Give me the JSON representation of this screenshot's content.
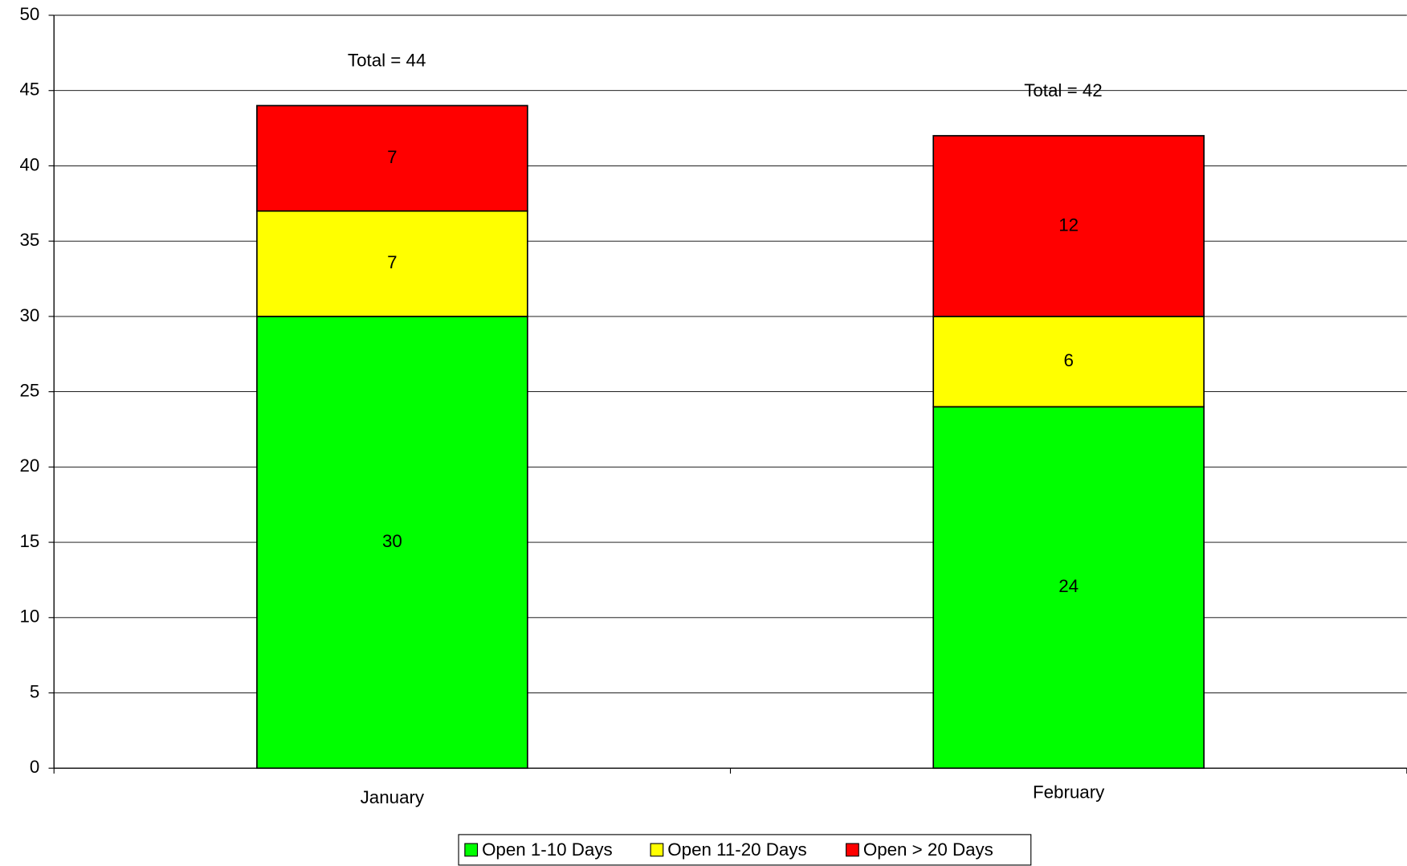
{
  "chart_data": {
    "type": "stacked_bar",
    "categories": [
      "January",
      "February"
    ],
    "series": [
      {
        "name": "Open 1-10 Days",
        "color": "#00ff00",
        "values": [
          30,
          24
        ]
      },
      {
        "name": "Open 11-20 Days",
        "color": "#ffff00",
        "values": [
          7,
          6
        ]
      },
      {
        "name": "Open > 20 Days",
        "color": "#ff0000",
        "values": [
          7,
          12
        ]
      }
    ],
    "annotations": [
      "Total = 44",
      "Total = 42"
    ],
    "ylim": [
      0,
      50
    ],
    "yticks": [
      0,
      5,
      10,
      15,
      20,
      25,
      30,
      35,
      40,
      45,
      50
    ],
    "grid": true,
    "legend": "bottom"
  }
}
